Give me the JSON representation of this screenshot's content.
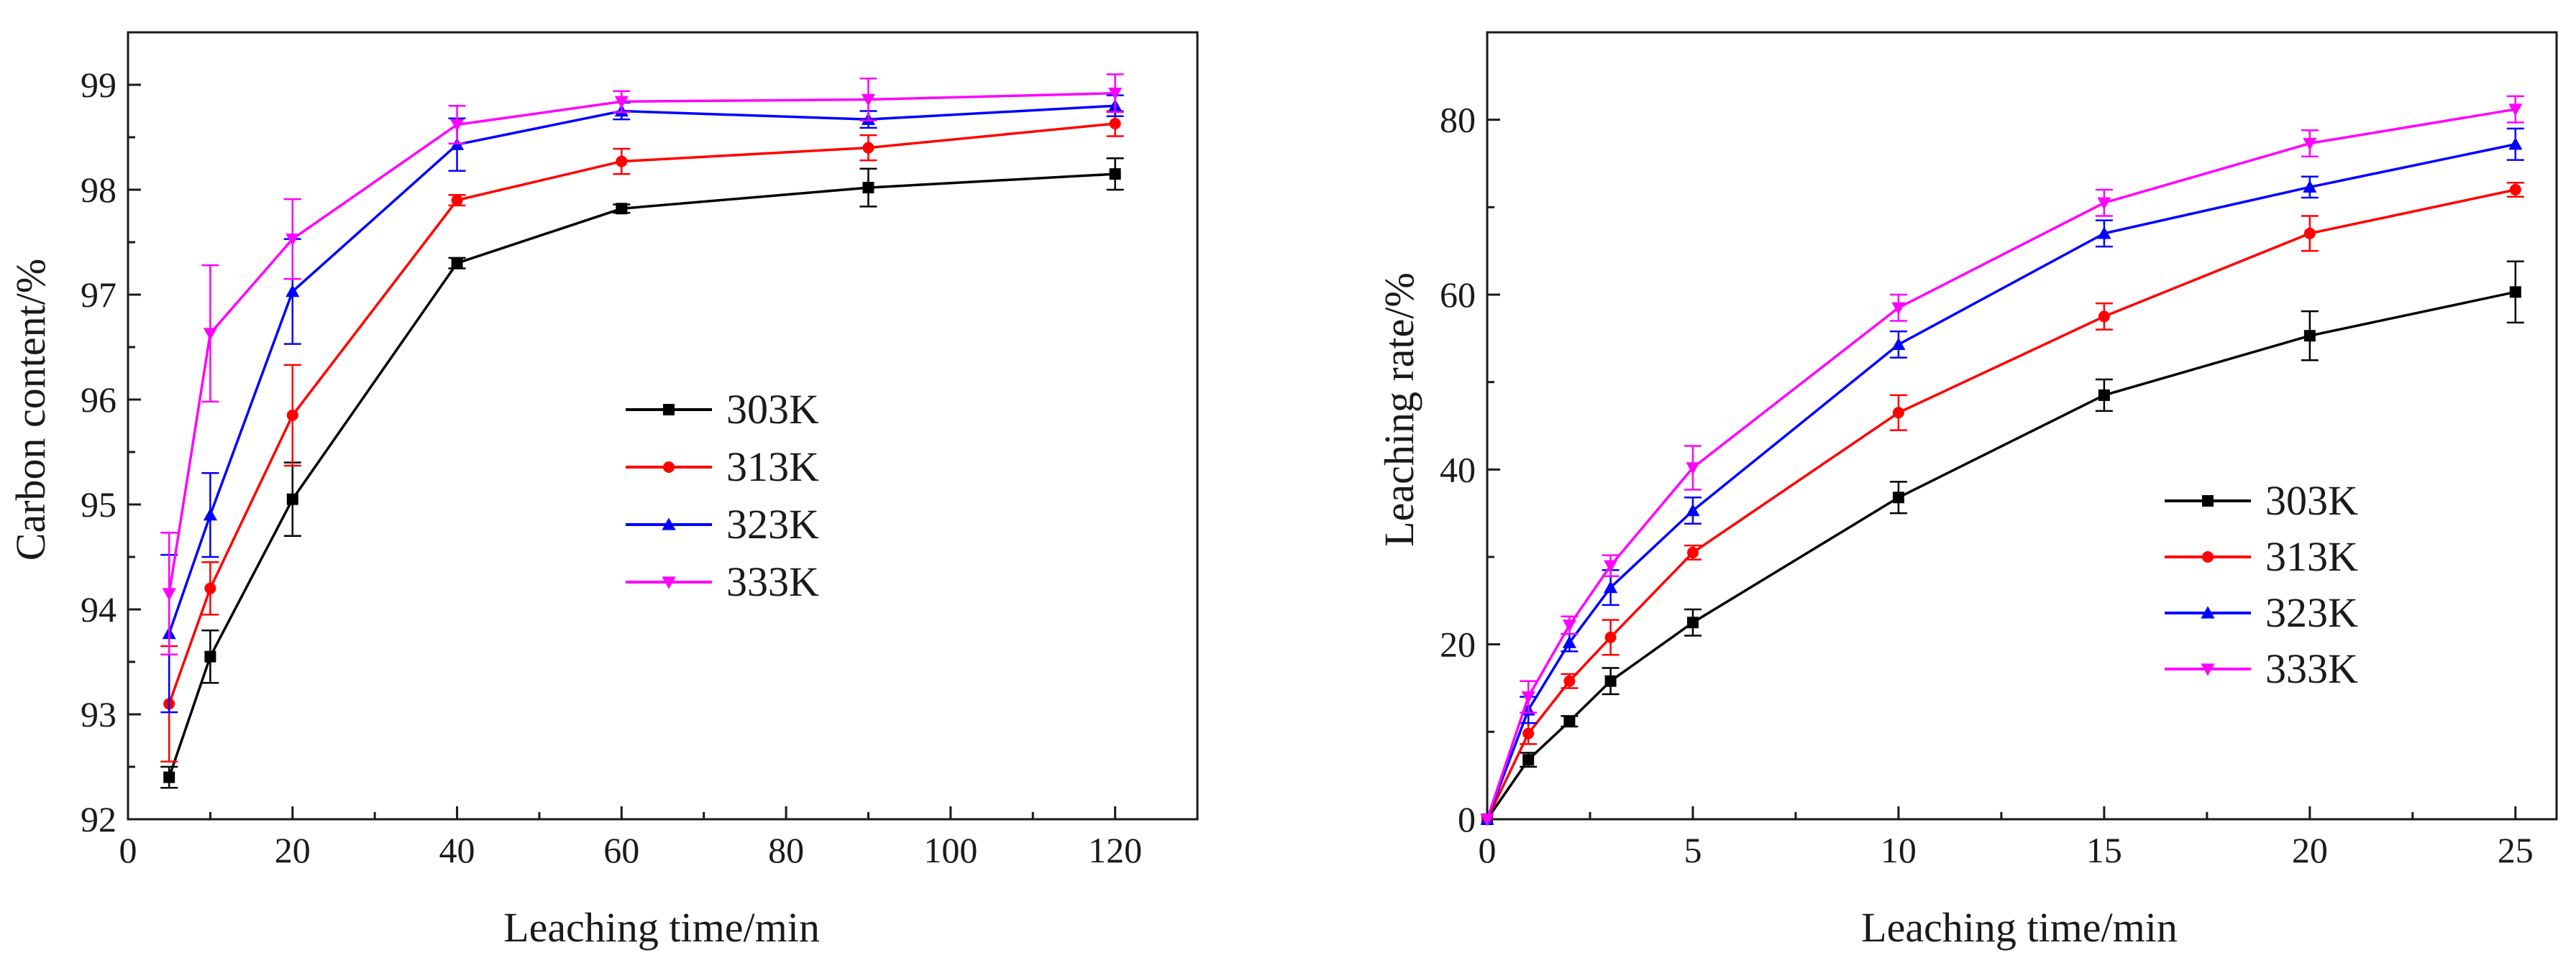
{
  "figure": {
    "colors": {
      "303K": "#000000",
      "313K": "#ff0000",
      "323K": "#0000ff",
      "333K": "#ff00ff"
    }
  },
  "chart_data": [
    {
      "type": "line",
      "title": "",
      "xlabel": "Leaching time/min",
      "ylabel": "Carbon content/%",
      "xlim": [
        0,
        130
      ],
      "ylim": [
        92,
        99.5
      ],
      "xticks": [
        0,
        20,
        40,
        60,
        80,
        100,
        120
      ],
      "yticks": [
        92,
        93,
        94,
        95,
        96,
        97,
        98,
        99
      ],
      "x_tick_labels": [
        "0",
        "20",
        "40",
        "60",
        "80",
        "100",
        "120"
      ],
      "y_tick_labels": [
        "92",
        "93",
        "94",
        "95",
        "96",
        "97",
        "98",
        "99"
      ],
      "legend_position": "center",
      "x": [
        5,
        10,
        20,
        40,
        60,
        90,
        120
      ],
      "series": [
        {
          "name": "303K",
          "marker": "square",
          "values": [
            92.4,
            93.55,
            95.05,
            97.3,
            97.82,
            98.02,
            98.15
          ],
          "errors": [
            0.1,
            0.25,
            0.35,
            0.05,
            0.04,
            0.18,
            0.15
          ]
        },
        {
          "name": "313K",
          "marker": "circle",
          "values": [
            93.1,
            94.2,
            95.85,
            97.9,
            98.27,
            98.4,
            98.63
          ],
          "errors": [
            0.55,
            0.25,
            0.48,
            0.05,
            0.12,
            0.12,
            0.12
          ]
        },
        {
          "name": "323K",
          "marker": "triangle-up",
          "values": [
            93.77,
            94.9,
            97.03,
            98.43,
            98.75,
            98.67,
            98.8
          ],
          "errors": [
            0.75,
            0.4,
            0.5,
            0.25,
            0.08,
            0.08,
            0.1
          ]
        },
        {
          "name": "333K",
          "marker": "triangle-down",
          "values": [
            94.15,
            96.63,
            97.53,
            98.62,
            98.84,
            98.86,
            98.92
          ],
          "errors": [
            0.58,
            0.65,
            0.38,
            0.18,
            0.1,
            0.2,
            0.18
          ]
        }
      ]
    },
    {
      "type": "line",
      "title": "",
      "xlabel": "Leaching time/min",
      "ylabel": "Leaching rate/%",
      "xlim": [
        0,
        26
      ],
      "ylim": [
        0,
        90
      ],
      "xticks": [
        0,
        5,
        10,
        15,
        20,
        25
      ],
      "yticks": [
        0,
        20,
        40,
        60,
        80
      ],
      "x_tick_labels": [
        "0",
        "5",
        "10",
        "15",
        "20",
        "25"
      ],
      "y_tick_labels": [
        "0",
        "20",
        "40",
        "60",
        "80"
      ],
      "legend_position": "center-right",
      "x": [
        0,
        1,
        2,
        3,
        5,
        10,
        15,
        20,
        25
      ],
      "series": [
        {
          "name": "303K",
          "marker": "square",
          "values": [
            0,
            6.8,
            11.2,
            15.8,
            22.5,
            36.8,
            48.5,
            55.3,
            60.3
          ],
          "errors": [
            0,
            0.8,
            0.6,
            1.5,
            1.5,
            1.8,
            1.8,
            2.8,
            3.5
          ]
        },
        {
          "name": "313K",
          "marker": "circle",
          "values": [
            0,
            9.8,
            15.8,
            20.8,
            30.5,
            46.5,
            57.5,
            67.0,
            72.0
          ],
          "errors": [
            0,
            1.2,
            0.8,
            2.0,
            0.8,
            2.0,
            1.5,
            2.0,
            0.8
          ]
        },
        {
          "name": "323K",
          "marker": "triangle-up",
          "values": [
            0,
            12.5,
            20.2,
            26.5,
            35.3,
            54.3,
            67.0,
            72.3,
            77.2
          ],
          "errors": [
            0,
            1.5,
            1.0,
            2.0,
            1.5,
            1.5,
            1.5,
            1.2,
            1.8
          ]
        },
        {
          "name": "333K",
          "marker": "triangle-down",
          "values": [
            0,
            14.0,
            22.2,
            29.0,
            40.2,
            58.5,
            70.5,
            77.3,
            81.2
          ],
          "errors": [
            0,
            1.8,
            1.0,
            1.2,
            2.5,
            1.5,
            1.5,
            1.5,
            1.5
          ]
        }
      ]
    }
  ]
}
